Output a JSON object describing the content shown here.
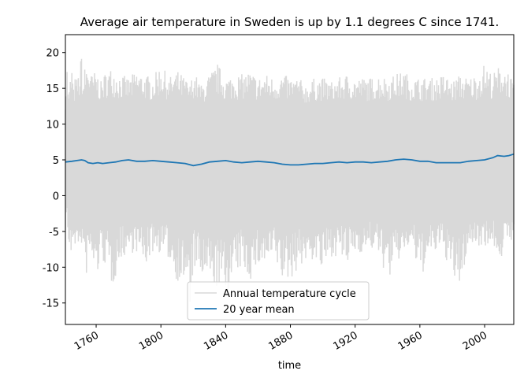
{
  "chart_data": {
    "type": "line",
    "title": "Average air temperature in Sweden is up by 1.1 degrees C since 1741.",
    "xlabel": "time",
    "ylabel": "",
    "xlim": [
      1741,
      2018
    ],
    "ylim": [
      -18,
      22.5
    ],
    "xticks": [
      1760,
      1800,
      1840,
      1880,
      1920,
      1960,
      2000
    ],
    "yticks": [
      -15,
      -10,
      -5,
      0,
      5,
      10,
      15,
      20
    ],
    "grid": false,
    "legend_position": "lower center",
    "series": [
      {
        "name": "Annual temperature cycle",
        "color": "#d9d9d9",
        "description_range": {
          "typical_min": -6,
          "typical_max": 16.5,
          "extreme_min": -16.5,
          "extreme_max": 20.7
        },
        "x": [
          1741,
          1742,
          1743,
          1744,
          1745,
          1746,
          1747,
          1748,
          1749,
          1750,
          1751,
          1752,
          1753,
          1755,
          1757,
          1760,
          1763,
          1766,
          1770,
          1775,
          1780,
          1785,
          1790,
          1795,
          1800,
          1805,
          1810,
          1815,
          1818,
          1820,
          1825,
          1830,
          1835,
          1840,
          1845,
          1850,
          1855,
          1860,
          1865,
          1870,
          1875,
          1880,
          1885,
          1890,
          1895,
          1900,
          1905,
          1910,
          1915,
          1920,
          1925,
          1930,
          1935,
          1940,
          1945,
          1950,
          1955,
          1960,
          1965,
          1970,
          1975,
          1980,
          1985,
          1990,
          1995,
          2000,
          2005,
          2010,
          2015,
          2018
        ],
        "y_max": [
          13.5,
          18.5,
          14,
          16.5,
          18.5,
          15,
          16.5,
          16.5,
          17,
          17.5,
          20.7,
          16,
          18,
          19,
          17,
          17.5,
          16,
          17.5,
          18,
          17,
          16.5,
          17.5,
          17,
          16.5,
          18.5,
          16.5,
          17.5,
          16.5,
          15.5,
          17.5,
          15.5,
          17,
          18.5,
          16.5,
          17,
          17,
          17.5,
          16.5,
          17,
          16.5,
          17,
          16.5,
          16.5,
          15.5,
          16.5,
          16.5,
          16,
          16.5,
          17,
          16.5,
          16.5,
          16.5,
          17,
          16.5,
          17,
          17.5,
          16.5,
          16.5,
          16.5,
          16.5,
          17,
          16,
          17,
          16.5,
          17,
          18.5,
          17,
          18.5,
          17.5,
          15.5
        ],
        "y_min": [
          -5,
          -2,
          -8,
          -8,
          -10,
          -6,
          -8,
          -5,
          -10,
          -8,
          -7,
          -8,
          -13.5,
          -9,
          -9,
          -12,
          -9,
          -10,
          -13,
          -9,
          -8,
          -8,
          -10,
          -8,
          -8,
          -9,
          -12,
          -12.5,
          -16.5,
          -10,
          -12,
          -12.5,
          -13,
          -14,
          -12,
          -10,
          -12,
          -10,
          -10,
          -9,
          -12,
          -12,
          -10,
          -9.5,
          -9,
          -11,
          -8.5,
          -8.5,
          -10,
          -8,
          -8,
          -7.5,
          -8.5,
          -12,
          -10,
          -8,
          -7,
          -12,
          -9,
          -8,
          -8,
          -12,
          -13,
          -7,
          -7,
          -7,
          -7,
          -9,
          -6,
          -6.5
        ]
      },
      {
        "name": "20 year mean",
        "color": "#1f77b4",
        "x": [
          1741,
          1745,
          1748,
          1751,
          1753,
          1755,
          1758,
          1761,
          1764,
          1768,
          1772,
          1776,
          1780,
          1785,
          1790,
          1795,
          1800,
          1805,
          1810,
          1815,
          1820,
          1825,
          1830,
          1835,
          1840,
          1845,
          1850,
          1855,
          1860,
          1865,
          1870,
          1875,
          1880,
          1885,
          1890,
          1895,
          1900,
          1905,
          1910,
          1915,
          1920,
          1925,
          1930,
          1935,
          1940,
          1945,
          1950,
          1955,
          1960,
          1965,
          1970,
          1975,
          1980,
          1985,
          1990,
          1995,
          2000,
          2005,
          2008,
          2012,
          2015,
          2018
        ],
        "y": [
          4.7,
          4.8,
          4.9,
          5.0,
          4.9,
          4.6,
          4.5,
          4.6,
          4.5,
          4.6,
          4.7,
          4.9,
          5.0,
          4.8,
          4.8,
          4.9,
          4.8,
          4.7,
          4.6,
          4.5,
          4.2,
          4.4,
          4.7,
          4.8,
          4.9,
          4.7,
          4.6,
          4.7,
          4.8,
          4.7,
          4.6,
          4.4,
          4.3,
          4.3,
          4.4,
          4.5,
          4.5,
          4.6,
          4.7,
          4.6,
          4.7,
          4.7,
          4.6,
          4.7,
          4.8,
          5.0,
          5.1,
          5.0,
          4.8,
          4.8,
          4.6,
          4.6,
          4.6,
          4.6,
          4.8,
          4.9,
          5.0,
          5.3,
          5.6,
          5.5,
          5.6,
          5.8
        ]
      }
    ]
  }
}
